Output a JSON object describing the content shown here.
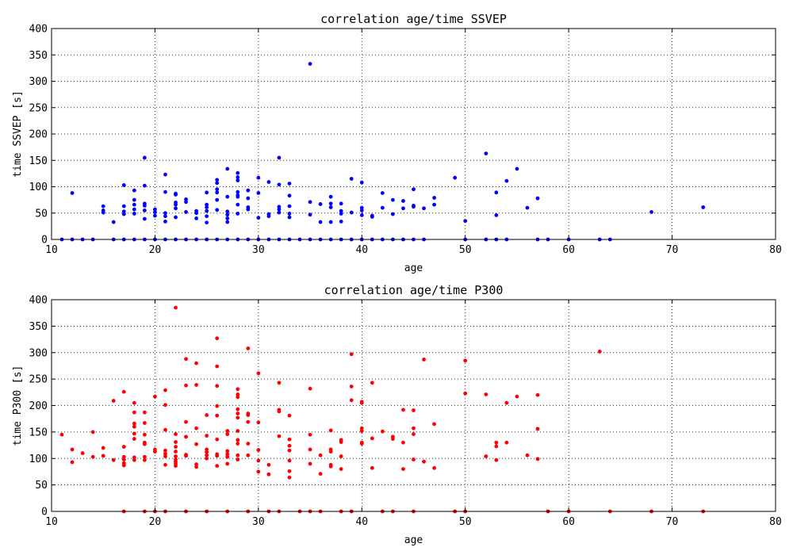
{
  "chart_data": [
    {
      "type": "scatter",
      "title": "correlation age/time SSVEP",
      "xlabel": "age",
      "ylabel": "time SSVEP [s]",
      "xlim": [
        10,
        80
      ],
      "ylim": [
        0,
        400
      ],
      "xticks": [
        10,
        20,
        30,
        40,
        50,
        60,
        70,
        80
      ],
      "yticks": [
        0,
        50,
        100,
        150,
        200,
        250,
        300,
        350,
        400
      ],
      "grid": true,
      "color": "#0000ff",
      "points": [
        [
          11,
          0
        ],
        [
          12,
          0
        ],
        [
          13,
          0
        ],
        [
          14,
          0
        ],
        [
          16,
          0
        ],
        [
          17,
          0
        ],
        [
          18,
          0
        ],
        [
          19,
          0
        ],
        [
          20,
          0
        ],
        [
          21,
          0
        ],
        [
          22,
          0
        ],
        [
          23,
          0
        ],
        [
          24,
          0
        ],
        [
          25,
          0
        ],
        [
          26,
          0
        ],
        [
          27,
          0
        ],
        [
          28,
          0
        ],
        [
          29,
          0
        ],
        [
          30,
          0
        ],
        [
          31,
          0
        ],
        [
          32,
          0
        ],
        [
          33,
          0
        ],
        [
          34,
          0
        ],
        [
          35,
          0
        ],
        [
          36,
          0
        ],
        [
          37,
          0
        ],
        [
          38,
          0
        ],
        [
          39,
          0
        ],
        [
          40,
          0
        ],
        [
          41,
          0
        ],
        [
          42,
          0
        ],
        [
          43,
          0
        ],
        [
          44,
          0
        ],
        [
          45,
          0
        ],
        [
          46,
          0
        ],
        [
          50,
          0
        ],
        [
          52,
          0
        ],
        [
          53,
          0
        ],
        [
          54,
          0
        ],
        [
          57,
          0
        ],
        [
          58,
          0
        ],
        [
          60,
          0
        ],
        [
          63,
          0
        ],
        [
          64,
          0
        ],
        [
          12,
          88
        ],
        [
          15,
          63
        ],
        [
          15,
          55
        ],
        [
          15,
          51
        ],
        [
          16,
          33
        ],
        [
          17,
          103
        ],
        [
          17,
          63
        ],
        [
          17,
          53
        ],
        [
          17,
          48
        ],
        [
          18,
          93
        ],
        [
          18,
          75
        ],
        [
          18,
          66
        ],
        [
          18,
          57
        ],
        [
          18,
          49
        ],
        [
          19,
          155
        ],
        [
          19,
          102
        ],
        [
          19,
          68
        ],
        [
          19,
          64
        ],
        [
          19,
          55
        ],
        [
          19,
          39
        ],
        [
          20,
          57
        ],
        [
          20,
          52
        ],
        [
          20,
          45
        ],
        [
          21,
          123
        ],
        [
          21,
          90
        ],
        [
          21,
          50
        ],
        [
          21,
          44
        ],
        [
          21,
          34
        ],
        [
          22,
          87
        ],
        [
          22,
          85
        ],
        [
          22,
          70
        ],
        [
          22,
          66
        ],
        [
          22,
          59
        ],
        [
          22,
          42
        ],
        [
          23,
          76
        ],
        [
          23,
          71
        ],
        [
          23,
          52
        ],
        [
          24,
          54
        ],
        [
          24,
          50
        ],
        [
          24,
          40
        ],
        [
          25,
          89
        ],
        [
          25,
          66
        ],
        [
          25,
          61
        ],
        [
          25,
          54
        ],
        [
          25,
          44
        ],
        [
          25,
          32
        ],
        [
          26,
          113
        ],
        [
          26,
          107
        ],
        [
          26,
          95
        ],
        [
          26,
          89
        ],
        [
          26,
          75
        ],
        [
          26,
          56
        ],
        [
          27,
          134
        ],
        [
          27,
          81
        ],
        [
          27,
          53
        ],
        [
          27,
          47
        ],
        [
          27,
          40
        ],
        [
          27,
          33
        ],
        [
          28,
          126
        ],
        [
          28,
          118
        ],
        [
          28,
          112
        ],
        [
          28,
          90
        ],
        [
          28,
          84
        ],
        [
          28,
          81
        ],
        [
          28,
          66
        ],
        [
          28,
          49
        ],
        [
          29,
          93
        ],
        [
          29,
          78
        ],
        [
          29,
          61
        ],
        [
          29,
          57
        ],
        [
          30,
          117
        ],
        [
          30,
          88
        ],
        [
          30,
          41
        ],
        [
          31,
          109
        ],
        [
          31,
          48
        ],
        [
          31,
          44
        ],
        [
          32,
          155
        ],
        [
          32,
          104
        ],
        [
          32,
          62
        ],
        [
          32,
          57
        ],
        [
          32,
          51
        ],
        [
          33,
          106
        ],
        [
          33,
          83
        ],
        [
          33,
          63
        ],
        [
          33,
          49
        ],
        [
          33,
          42
        ],
        [
          35,
          333
        ],
        [
          35,
          71
        ],
        [
          35,
          47
        ],
        [
          36,
          67
        ],
        [
          36,
          33
        ],
        [
          37,
          81
        ],
        [
          37,
          68
        ],
        [
          37,
          61
        ],
        [
          37,
          33
        ],
        [
          38,
          68
        ],
        [
          38,
          54
        ],
        [
          38,
          49
        ],
        [
          38,
          34
        ],
        [
          39,
          115
        ],
        [
          39,
          51
        ],
        [
          40,
          108
        ],
        [
          40,
          60
        ],
        [
          40,
          55
        ],
        [
          40,
          46
        ],
        [
          41,
          45
        ],
        [
          41,
          43
        ],
        [
          42,
          88
        ],
        [
          42,
          60
        ],
        [
          43,
          75
        ],
        [
          43,
          48
        ],
        [
          44,
          73
        ],
        [
          44,
          59
        ],
        [
          45,
          95
        ],
        [
          45,
          64
        ],
        [
          45,
          62
        ],
        [
          46,
          59
        ],
        [
          47,
          79
        ],
        [
          47,
          66
        ],
        [
          49,
          117
        ],
        [
          50,
          35
        ],
        [
          52,
          163
        ],
        [
          53,
          89
        ],
        [
          53,
          46
        ],
        [
          54,
          111
        ],
        [
          55,
          134
        ],
        [
          56,
          60
        ],
        [
          57,
          78
        ],
        [
          68,
          52
        ],
        [
          73,
          61
        ]
      ]
    },
    {
      "type": "scatter",
      "title": "correlation age/time P300",
      "xlabel": "age",
      "ylabel": "time P300 [s]",
      "xlim": [
        10,
        80
      ],
      "ylim": [
        0,
        400
      ],
      "xticks": [
        10,
        20,
        30,
        40,
        50,
        60,
        70,
        80
      ],
      "yticks": [
        0,
        50,
        100,
        150,
        200,
        250,
        300,
        350,
        400
      ],
      "grid": true,
      "color": "#ff0000",
      "points": [
        [
          17,
          0
        ],
        [
          19,
          0
        ],
        [
          20,
          0
        ],
        [
          21,
          0
        ],
        [
          23,
          0
        ],
        [
          25,
          0
        ],
        [
          27,
          0
        ],
        [
          29,
          0
        ],
        [
          31,
          0
        ],
        [
          32,
          0
        ],
        [
          34,
          0
        ],
        [
          35,
          0
        ],
        [
          36,
          0
        ],
        [
          38,
          0
        ],
        [
          39,
          0
        ],
        [
          42,
          0
        ],
        [
          43,
          0
        ],
        [
          45,
          0
        ],
        [
          49,
          0
        ],
        [
          50,
          0
        ],
        [
          58,
          0
        ],
        [
          60,
          0
        ],
        [
          64,
          0
        ],
        [
          68,
          0
        ],
        [
          73,
          0
        ],
        [
          11,
          145
        ],
        [
          12,
          117
        ],
        [
          12,
          93
        ],
        [
          13,
          110
        ],
        [
          14,
          150
        ],
        [
          14,
          103
        ],
        [
          15,
          120
        ],
        [
          15,
          105
        ],
        [
          16,
          209
        ],
        [
          16,
          97
        ],
        [
          17,
          226
        ],
        [
          17,
          122
        ],
        [
          17,
          103
        ],
        [
          17,
          98
        ],
        [
          17,
          91
        ],
        [
          17,
          87
        ],
        [
          18,
          205
        ],
        [
          18,
          187
        ],
        [
          18,
          166
        ],
        [
          18,
          160
        ],
        [
          18,
          147
        ],
        [
          18,
          137
        ],
        [
          18,
          102
        ],
        [
          18,
          97
        ],
        [
          19,
          187
        ],
        [
          19,
          167
        ],
        [
          19,
          145
        ],
        [
          19,
          130
        ],
        [
          19,
          127
        ],
        [
          19,
          103
        ],
        [
          19,
          97
        ],
        [
          20,
          217
        ],
        [
          20,
          117
        ],
        [
          20,
          113
        ],
        [
          21,
          229
        ],
        [
          21,
          201
        ],
        [
          21,
          154
        ],
        [
          21,
          115
        ],
        [
          21,
          109
        ],
        [
          21,
          104
        ],
        [
          21,
          88
        ],
        [
          22,
          385
        ],
        [
          22,
          146
        ],
        [
          22,
          131
        ],
        [
          22,
          122
        ],
        [
          22,
          113
        ],
        [
          22,
          104
        ],
        [
          22,
          98
        ],
        [
          22,
          94
        ],
        [
          22,
          90
        ],
        [
          22,
          86
        ],
        [
          23,
          288
        ],
        [
          23,
          238
        ],
        [
          23,
          169
        ],
        [
          23,
          141
        ],
        [
          23,
          107
        ],
        [
          23,
          105
        ],
        [
          24,
          280
        ],
        [
          24,
          239
        ],
        [
          24,
          157
        ],
        [
          24,
          127
        ],
        [
          24,
          89
        ],
        [
          24,
          84
        ],
        [
          25,
          182
        ],
        [
          25,
          143
        ],
        [
          25,
          117
        ],
        [
          25,
          112
        ],
        [
          25,
          106
        ],
        [
          25,
          100
        ],
        [
          26,
          327
        ],
        [
          26,
          274
        ],
        [
          26,
          237
        ],
        [
          26,
          199
        ],
        [
          26,
          181
        ],
        [
          26,
          136
        ],
        [
          26,
          108
        ],
        [
          26,
          105
        ],
        [
          26,
          86
        ],
        [
          27,
          152
        ],
        [
          27,
          146
        ],
        [
          27,
          114
        ],
        [
          27,
          108
        ],
        [
          27,
          103
        ],
        [
          27,
          90
        ],
        [
          28,
          231
        ],
        [
          28,
          221
        ],
        [
          28,
          216
        ],
        [
          28,
          193
        ],
        [
          28,
          185
        ],
        [
          28,
          177
        ],
        [
          28,
          152
        ],
        [
          28,
          135
        ],
        [
          28,
          128
        ],
        [
          28,
          106
        ],
        [
          28,
          98
        ],
        [
          29,
          308
        ],
        [
          29,
          185
        ],
        [
          29,
          182
        ],
        [
          29,
          169
        ],
        [
          29,
          128
        ],
        [
          29,
          106
        ],
        [
          30,
          261
        ],
        [
          30,
          168
        ],
        [
          30,
          116
        ],
        [
          30,
          96
        ],
        [
          30,
          75
        ],
        [
          31,
          88
        ],
        [
          31,
          70
        ],
        [
          32,
          243
        ],
        [
          32,
          192
        ],
        [
          32,
          189
        ],
        [
          32,
          142
        ],
        [
          33,
          181
        ],
        [
          33,
          136
        ],
        [
          33,
          124
        ],
        [
          33,
          115
        ],
        [
          33,
          96
        ],
        [
          33,
          76
        ],
        [
          33,
          64
        ],
        [
          35,
          232
        ],
        [
          35,
          145
        ],
        [
          35,
          117
        ],
        [
          35,
          90
        ],
        [
          36,
          106
        ],
        [
          36,
          71
        ],
        [
          37,
          153
        ],
        [
          37,
          117
        ],
        [
          37,
          113
        ],
        [
          37,
          88
        ],
        [
          37,
          85
        ],
        [
          38,
          135
        ],
        [
          38,
          131
        ],
        [
          38,
          104
        ],
        [
          38,
          80
        ],
        [
          39,
          297
        ],
        [
          39,
          236
        ],
        [
          39,
          210
        ],
        [
          40,
          207
        ],
        [
          40,
          205
        ],
        [
          40,
          157
        ],
        [
          40,
          152
        ],
        [
          40,
          130
        ],
        [
          40,
          128
        ],
        [
          41,
          243
        ],
        [
          41,
          138
        ],
        [
          41,
          82
        ],
        [
          42,
          151
        ],
        [
          43,
          141
        ],
        [
          43,
          137
        ],
        [
          44,
          192
        ],
        [
          44,
          130
        ],
        [
          44,
          80
        ],
        [
          45,
          191
        ],
        [
          45,
          157
        ],
        [
          45,
          146
        ],
        [
          45,
          98
        ],
        [
          46,
          287
        ],
        [
          46,
          94
        ],
        [
          47,
          165
        ],
        [
          47,
          82
        ],
        [
          50,
          285
        ],
        [
          50,
          223
        ],
        [
          52,
          221
        ],
        [
          52,
          104
        ],
        [
          53,
          130
        ],
        [
          53,
          123
        ],
        [
          53,
          97
        ],
        [
          54,
          205
        ],
        [
          54,
          130
        ],
        [
          55,
          217
        ],
        [
          56,
          106
        ],
        [
          57,
          220
        ],
        [
          57,
          156
        ],
        [
          57,
          99
        ],
        [
          63,
          302
        ]
      ]
    }
  ]
}
